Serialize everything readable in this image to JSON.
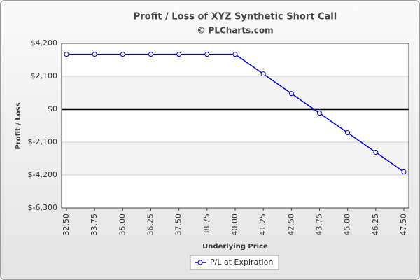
{
  "chart_data": {
    "type": "line",
    "title": "Profit / Loss of XYZ Synthetic Short Call",
    "subtitle": "© PLCharts.com",
    "x_label": "Underlying Price",
    "y_label": "Profit / Loss",
    "categories": [
      "32.50",
      "33.75",
      "35.00",
      "36.25",
      "37.50",
      "38.75",
      "40.00",
      "41.25",
      "42.50",
      "43.75",
      "45.00",
      "46.25",
      "47.50"
    ],
    "series": [
      {
        "name": "P/L at Expiration",
        "color": "#0000cc",
        "values": [
          3500,
          3500,
          3500,
          3500,
          3500,
          3500,
          3500,
          2250,
          1000,
          -250,
          -1500,
          -2750,
          -4000
        ]
      }
    ],
    "ylim": [
      -6300,
      4200
    ],
    "yticks": [
      {
        "value": 4200,
        "label": "$4,200"
      },
      {
        "value": 2100,
        "label": "$2,100"
      },
      {
        "value": 0,
        "label": "$0"
      },
      {
        "value": -2100,
        "label": "$-2,100"
      },
      {
        "value": -4200,
        "label": "$-4,200"
      },
      {
        "value": -6300,
        "label": "$-6,300"
      }
    ],
    "grid": true,
    "legend": "bottom"
  }
}
